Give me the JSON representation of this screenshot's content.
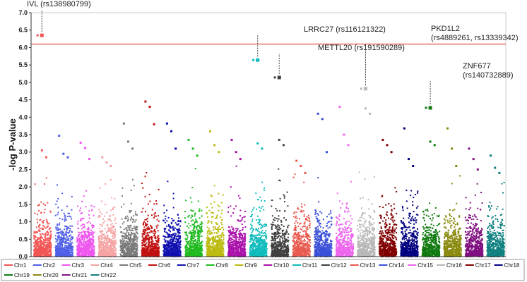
{
  "chart_data": {
    "type": "scatter",
    "ylabel": "-log P-value",
    "ylim": [
      0,
      7.0
    ],
    "yticks": [
      "0.0",
      "0.5",
      "1.0",
      "1.5",
      "2.0",
      "2.5",
      "3.0",
      "3.5",
      "4.0",
      "4.5",
      "5.0",
      "5.5",
      "6.0",
      "6.5",
      "7.0"
    ],
    "threshold": 6.1,
    "threshold_color": "#e0504a",
    "chromosomes": [
      {
        "name": "Chr1",
        "color": "#f25555",
        "peak": 6.35,
        "top": [
          6.35,
          3.05,
          2.85
        ]
      },
      {
        "name": "Chr2",
        "color": "#4f5fe6",
        "peak": 3.47,
        "top": [
          3.47,
          2.95,
          2.85
        ]
      },
      {
        "name": "Chr3",
        "color": "#ee55ee",
        "peak": 3.27,
        "top": [
          3.27,
          3.12,
          2.8
        ]
      },
      {
        "name": "Chr4",
        "color": "#f5a3a3",
        "peak": 2.85,
        "top": [
          2.85,
          2.7,
          2.6
        ]
      },
      {
        "name": "Chr5",
        "color": "#7a7a7a",
        "peak": 3.82,
        "top": [
          3.82,
          3.3,
          3.1
        ]
      },
      {
        "name": "Chr6",
        "color": "#c01010",
        "peak": 4.45,
        "top": [
          4.45,
          4.3,
          3.8
        ]
      },
      {
        "name": "Chr7",
        "color": "#1010b0",
        "peak": 3.82,
        "top": [
          3.82,
          3.6,
          3.1
        ]
      },
      {
        "name": "Chr8",
        "color": "#20bb20",
        "peak": 3.35,
        "top": [
          3.35,
          3.1,
          2.9
        ]
      },
      {
        "name": "Chr9",
        "color": "#bbbb10",
        "peak": 3.6,
        "top": [
          3.6,
          3.2,
          3.0
        ]
      },
      {
        "name": "Chr10",
        "color": "#aa10aa",
        "peak": 3.35,
        "top": [
          3.35,
          3.0,
          2.8
        ]
      },
      {
        "name": "Chr11",
        "color": "#10bbbb",
        "peak": 5.64,
        "top": [
          5.64,
          3.25,
          3.1
        ]
      },
      {
        "name": "Chr12",
        "color": "#404040",
        "peak": 5.14,
        "top": [
          5.14,
          3.35,
          3.2
        ]
      },
      {
        "name": "Chr13",
        "color": "#e85a4f",
        "peak": 2.75,
        "top": [
          2.75,
          2.6,
          2.4
        ]
      },
      {
        "name": "Chr14",
        "color": "#3a50d8",
        "peak": 4.1,
        "top": [
          4.1,
          3.95,
          3.0
        ]
      },
      {
        "name": "Chr15",
        "color": "#ee66ee",
        "peak": 4.3,
        "top": [
          4.3,
          3.5,
          3.2
        ]
      },
      {
        "name": "Chr16",
        "color": "#b8b8b8",
        "peak": 4.82,
        "top": [
          4.82,
          4.25,
          4.1
        ]
      },
      {
        "name": "Chr17",
        "color": "#800000",
        "peak": 3.35,
        "top": [
          3.35,
          3.2,
          3.0
        ]
      },
      {
        "name": "Chr18",
        "color": "#000080",
        "peak": 3.68,
        "top": [
          3.68,
          2.8,
          2.6
        ]
      },
      {
        "name": "Chr19",
        "color": "#107a10",
        "peak": 4.27,
        "top": [
          4.27,
          3.3,
          3.2
        ]
      },
      {
        "name": "Chr20",
        "color": "#8a8a10",
        "peak": 3.68,
        "top": [
          3.68,
          3.1,
          2.6
        ]
      },
      {
        "name": "Chr21",
        "color": "#801080",
        "peak": 3.1,
        "top": [
          3.1,
          2.8,
          2.5
        ]
      },
      {
        "name": "Chr22",
        "color": "#108080",
        "peak": 2.9,
        "top": [
          2.9,
          2.55,
          2.4
        ]
      }
    ],
    "annotations": [
      {
        "label": "IVL (rs138980799)",
        "chrom": "Chr1",
        "value": 6.35
      },
      {
        "label": "LRRC27 (rs116121322)",
        "chrom": "Chr11",
        "value": 5.64
      },
      {
        "label": "METTL20 (rs191590289)",
        "chrom": "Chr12",
        "value": 5.14
      },
      {
        "label": "PKD1L2",
        "label2": "(rs4889261, rs13339342)",
        "chrom": "Chr16",
        "value": 4.82
      },
      {
        "label": "ZNF677",
        "label2": "(rs140732889)",
        "chrom": "Chr19",
        "value": 4.27
      }
    ],
    "legend": [
      "Chr1",
      "Chr2",
      "Chr3",
      "Chr4",
      "Chr5",
      "Chr6",
      "Chr7",
      "Chr8",
      "Chr9",
      "Chr10",
      "Chr11",
      "Chr12",
      "Chr13",
      "Chr14",
      "Chr15",
      "Chr16",
      "Chr17",
      "Chr18",
      "Chr19",
      "Chr20",
      "Chr21",
      "Chr22"
    ],
    "legend_placement": "bottom"
  }
}
